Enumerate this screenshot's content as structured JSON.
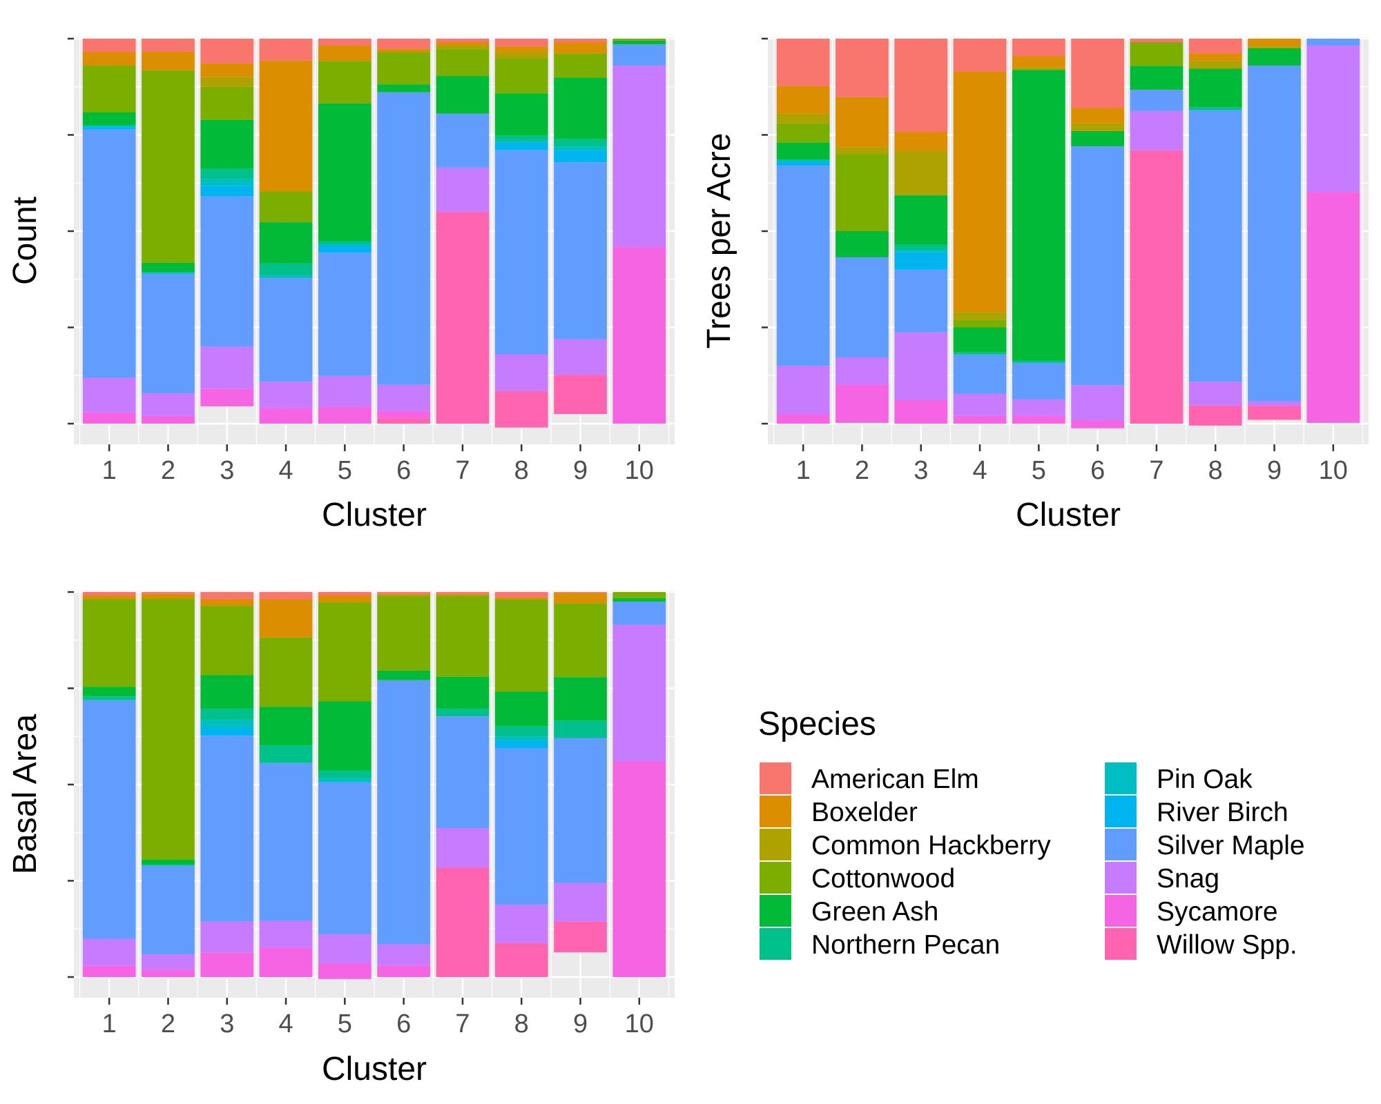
{
  "legend": {
    "title": "Species",
    "entries": [
      {
        "label": "American Elm",
        "color": "#F8766D"
      },
      {
        "label": "Boxelder",
        "color": "#DB8E00"
      },
      {
        "label": "Common Hackberry",
        "color": "#AEA200"
      },
      {
        "label": "Cottonwood",
        "color": "#7CAE00"
      },
      {
        "label": "Green Ash",
        "color": "#00BA38"
      },
      {
        "label": "Northern Pecan",
        "color": "#00C08B"
      },
      {
        "label": "Pin Oak",
        "color": "#00BFC4"
      },
      {
        "label": "River Birch",
        "color": "#00B4F0"
      },
      {
        "label": "Silver Maple",
        "color": "#619CFF"
      },
      {
        "label": "Snag",
        "color": "#C77CFF"
      },
      {
        "label": "Sycamore",
        "color": "#F564E3"
      },
      {
        "label": "Willow Spp.",
        "color": "#FF64B0"
      }
    ]
  },
  "chart_data": [
    {
      "type": "bar",
      "stacked": "proportion",
      "xlabel": "Cluster",
      "ylabel": "Count",
      "categories": [
        "1",
        "2",
        "3",
        "4",
        "5",
        "6",
        "7",
        "8",
        "9",
        "10"
      ],
      "ylim": [
        0,
        1
      ],
      "grid": true,
      "series": [
        {
          "name": "American Elm",
          "values": [
            0.034,
            0.034,
            0.064,
            0.057,
            0.018,
            0.027,
            0.009,
            0.02,
            0.009,
            0.0
          ]
        },
        {
          "name": "Boxelder",
          "values": [
            0.036,
            0.048,
            0.036,
            0.34,
            0.04,
            0.008,
            0.009,
            0.016,
            0.03,
            0.0
          ]
        },
        {
          "name": "Common Hackberry",
          "values": [
            0.0,
            0.0,
            0.025,
            0.0,
            0.0,
            0.0,
            0.009,
            0.016,
            0.0,
            0.0
          ]
        },
        {
          "name": "Cottonwood",
          "values": [
            0.121,
            0.5,
            0.086,
            0.08,
            0.11,
            0.084,
            0.07,
            0.09,
            0.062,
            0.005
          ]
        },
        {
          "name": "Green Ash",
          "values": [
            0.034,
            0.025,
            0.127,
            0.107,
            0.358,
            0.02,
            0.098,
            0.11,
            0.16,
            0.01
          ]
        },
        {
          "name": "Northern Pecan",
          "values": [
            0.0,
            0.0,
            0.027,
            0.032,
            0.01,
            0.0,
            0.0,
            0.013,
            0.02,
            0.0
          ]
        },
        {
          "name": "Pin Oak",
          "values": [
            0.005,
            0.004,
            0.018,
            0.005,
            0.0,
            0.0,
            0.0,
            0.005,
            0.01,
            0.0
          ]
        },
        {
          "name": "River Birch",
          "values": [
            0.006,
            0.0,
            0.027,
            0.0,
            0.02,
            0.0,
            0.0,
            0.02,
            0.03,
            0.0
          ]
        },
        {
          "name": "Silver Maple",
          "values": [
            0.645,
            0.31,
            0.39,
            0.27,
            0.32,
            0.76,
            0.14,
            0.53,
            0.46,
            0.055
          ]
        },
        {
          "name": "Snag",
          "values": [
            0.09,
            0.059,
            0.11,
            0.068,
            0.08,
            0.068,
            0.115,
            0.095,
            0.092,
            0.47
          ]
        },
        {
          "name": "Sycamore",
          "values": [
            0.029,
            0.02,
            0.045,
            0.041,
            0.044,
            0.019,
            0.0,
            0.0,
            0.0,
            0.46
          ]
        },
        {
          "name": "Willow Spp.",
          "values": [
            0.0,
            0.0,
            0.0,
            0.0,
            0.0,
            0.014,
            0.55,
            0.095,
            0.102,
            0.0
          ]
        }
      ]
    },
    {
      "type": "bar",
      "stacked": "proportion",
      "xlabel": "Cluster",
      "ylabel": "Trees per Acre",
      "categories": [
        "1",
        "2",
        "3",
        "4",
        "5",
        "6",
        "7",
        "8",
        "9",
        "10"
      ],
      "ylim": [
        0,
        1
      ],
      "grid": true,
      "series": [
        {
          "name": "American Elm",
          "values": [
            0.123,
            0.152,
            0.242,
            0.085,
            0.045,
            0.18,
            0.009,
            0.038,
            0.0,
            0.0
          ]
        },
        {
          "name": "Boxelder",
          "values": [
            0.072,
            0.13,
            0.05,
            0.625,
            0.03,
            0.04,
            0.0,
            0.02,
            0.02,
            0.0
          ]
        },
        {
          "name": "Common Hackberry",
          "values": [
            0.025,
            0.018,
            0.115,
            0.02,
            0.006,
            0.02,
            0.0,
            0.02,
            0.005,
            0.0
          ]
        },
        {
          "name": "Cottonwood",
          "values": [
            0.05,
            0.2,
            0.0,
            0.02,
            0.0,
            0.0,
            0.062,
            0.0,
            0.0,
            0.0
          ]
        },
        {
          "name": "Green Ash",
          "values": [
            0.045,
            0.068,
            0.128,
            0.065,
            0.755,
            0.04,
            0.062,
            0.1,
            0.045,
            0.0
          ]
        },
        {
          "name": "Northern Pecan",
          "values": [
            0.0,
            0.0,
            0.015,
            0.005,
            0.006,
            0.0,
            0.0,
            0.008,
            0.0,
            0.0
          ]
        },
        {
          "name": "Pin Oak",
          "values": [
            0.005,
            0.0,
            0.005,
            0.0,
            0.0,
            0.0,
            0.0,
            0.0,
            0.0,
            0.0
          ]
        },
        {
          "name": "River Birch",
          "values": [
            0.01,
            0.0,
            0.045,
            0.0,
            0.0,
            0.0,
            0.0,
            0.0,
            0.0,
            0.0
          ]
        },
        {
          "name": "Silver Maple",
          "values": [
            0.52,
            0.26,
            0.163,
            0.102,
            0.095,
            0.62,
            0.055,
            0.705,
            0.872,
            0.018
          ]
        },
        {
          "name": "Snag",
          "values": [
            0.125,
            0.07,
            0.175,
            0.058,
            0.042,
            0.092,
            0.102,
            0.062,
            0.012,
            0.38
          ]
        },
        {
          "name": "Sycamore",
          "values": [
            0.025,
            0.1,
            0.062,
            0.02,
            0.021,
            0.02,
            0.0,
            0.0,
            0.0,
            0.6
          ]
        },
        {
          "name": "Willow Spp.",
          "values": [
            0.0,
            0.0,
            0.0,
            0.0,
            0.0,
            0.0,
            0.71,
            0.052,
            0.036,
            0.0
          ]
        }
      ]
    },
    {
      "type": "bar",
      "stacked": "proportion",
      "xlabel": "Cluster",
      "ylabel": "Basal Area",
      "categories": [
        "1",
        "2",
        "3",
        "4",
        "5",
        "6",
        "7",
        "8",
        "9",
        "10"
      ],
      "ylim": [
        0,
        1
      ],
      "grid": true,
      "series": [
        {
          "name": "American Elm",
          "values": [
            0.009,
            0.005,
            0.018,
            0.018,
            0.009,
            0.005,
            0.005,
            0.014,
            0.002,
            0.0
          ]
        },
        {
          "name": "Boxelder",
          "values": [
            0.009,
            0.012,
            0.018,
            0.1,
            0.018,
            0.005,
            0.005,
            0.005,
            0.027,
            0.0
          ]
        },
        {
          "name": "Common Hackberry",
          "values": [
            0.0,
            0.0,
            0.0,
            0.0,
            0.0,
            0.0,
            0.0,
            0.0,
            0.0,
            0.0
          ]
        },
        {
          "name": "Cottonwood",
          "values": [
            0.228,
            0.678,
            0.18,
            0.18,
            0.257,
            0.194,
            0.21,
            0.24,
            0.192,
            0.016
          ]
        },
        {
          "name": "Green Ash",
          "values": [
            0.025,
            0.012,
            0.087,
            0.1,
            0.18,
            0.025,
            0.083,
            0.09,
            0.113,
            0.009
          ]
        },
        {
          "name": "Northern Pecan",
          "values": [
            0.01,
            0.004,
            0.03,
            0.046,
            0.02,
            0.0,
            0.02,
            0.027,
            0.045,
            0.0
          ]
        },
        {
          "name": "Pin Oak",
          "values": [
            0.0,
            0.0,
            0.02,
            0.0,
            0.01,
            0.0,
            0.0,
            0.01,
            0.0,
            0.0
          ]
        },
        {
          "name": "River Birch",
          "values": [
            0.0,
            0.0,
            0.02,
            0.0,
            0.0,
            0.0,
            0.0,
            0.02,
            0.0,
            0.0
          ]
        },
        {
          "name": "Silver Maple",
          "values": [
            0.62,
            0.23,
            0.483,
            0.41,
            0.395,
            0.686,
            0.29,
            0.406,
            0.377,
            0.06
          ]
        },
        {
          "name": "Snag",
          "values": [
            0.07,
            0.04,
            0.08,
            0.07,
            0.075,
            0.055,
            0.103,
            0.1,
            0.1,
            0.355
          ]
        },
        {
          "name": "Sycamore",
          "values": [
            0.029,
            0.019,
            0.064,
            0.076,
            0.041,
            0.03,
            0.0,
            0.0,
            0.0,
            0.56
          ]
        },
        {
          "name": "Willow Spp.",
          "values": [
            0.0,
            0.0,
            0.0,
            0.0,
            0.0,
            0.0,
            0.284,
            0.088,
            0.08,
            0.0
          ]
        }
      ]
    }
  ]
}
